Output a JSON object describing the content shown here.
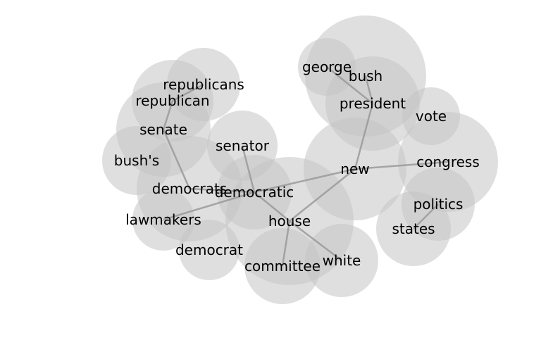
{
  "diagram": {
    "nodes": [
      {
        "id": "republicans",
        "label": "republicans"
      },
      {
        "id": "republican",
        "label": "republican"
      },
      {
        "id": "senate",
        "label": "senate"
      },
      {
        "id": "bushs",
        "label": "bush's"
      },
      {
        "id": "senator",
        "label": "senator"
      },
      {
        "id": "democrats",
        "label": "democrats"
      },
      {
        "id": "democratic",
        "label": "democratic"
      },
      {
        "id": "lawmakers",
        "label": "lawmakers"
      },
      {
        "id": "democrat",
        "label": "democrat"
      },
      {
        "id": "house",
        "label": "house"
      },
      {
        "id": "committee",
        "label": "committee"
      },
      {
        "id": "white",
        "label": "white"
      },
      {
        "id": "george",
        "label": "george"
      },
      {
        "id": "bush",
        "label": "bush"
      },
      {
        "id": "president",
        "label": "president"
      },
      {
        "id": "vote",
        "label": "vote"
      },
      {
        "id": "new",
        "label": "new"
      },
      {
        "id": "congress",
        "label": "congress"
      },
      {
        "id": "politics",
        "label": "politics"
      },
      {
        "id": "states",
        "label": "states"
      }
    ],
    "edges": [
      [
        "republicans",
        "republican"
      ],
      [
        "republican",
        "senate"
      ],
      [
        "senate",
        "democrats"
      ],
      [
        "democrats",
        "democratic"
      ],
      [
        "senator",
        "democratic"
      ],
      [
        "lawmakers",
        "democratic"
      ],
      [
        "democratic",
        "house"
      ],
      [
        "democratic",
        "new"
      ],
      [
        "house",
        "committee"
      ],
      [
        "house",
        "white"
      ],
      [
        "house",
        "new"
      ],
      [
        "george",
        "president"
      ],
      [
        "bush",
        "president"
      ],
      [
        "president",
        "new"
      ],
      [
        "new",
        "congress"
      ],
      [
        "politics",
        "states"
      ]
    ]
  }
}
